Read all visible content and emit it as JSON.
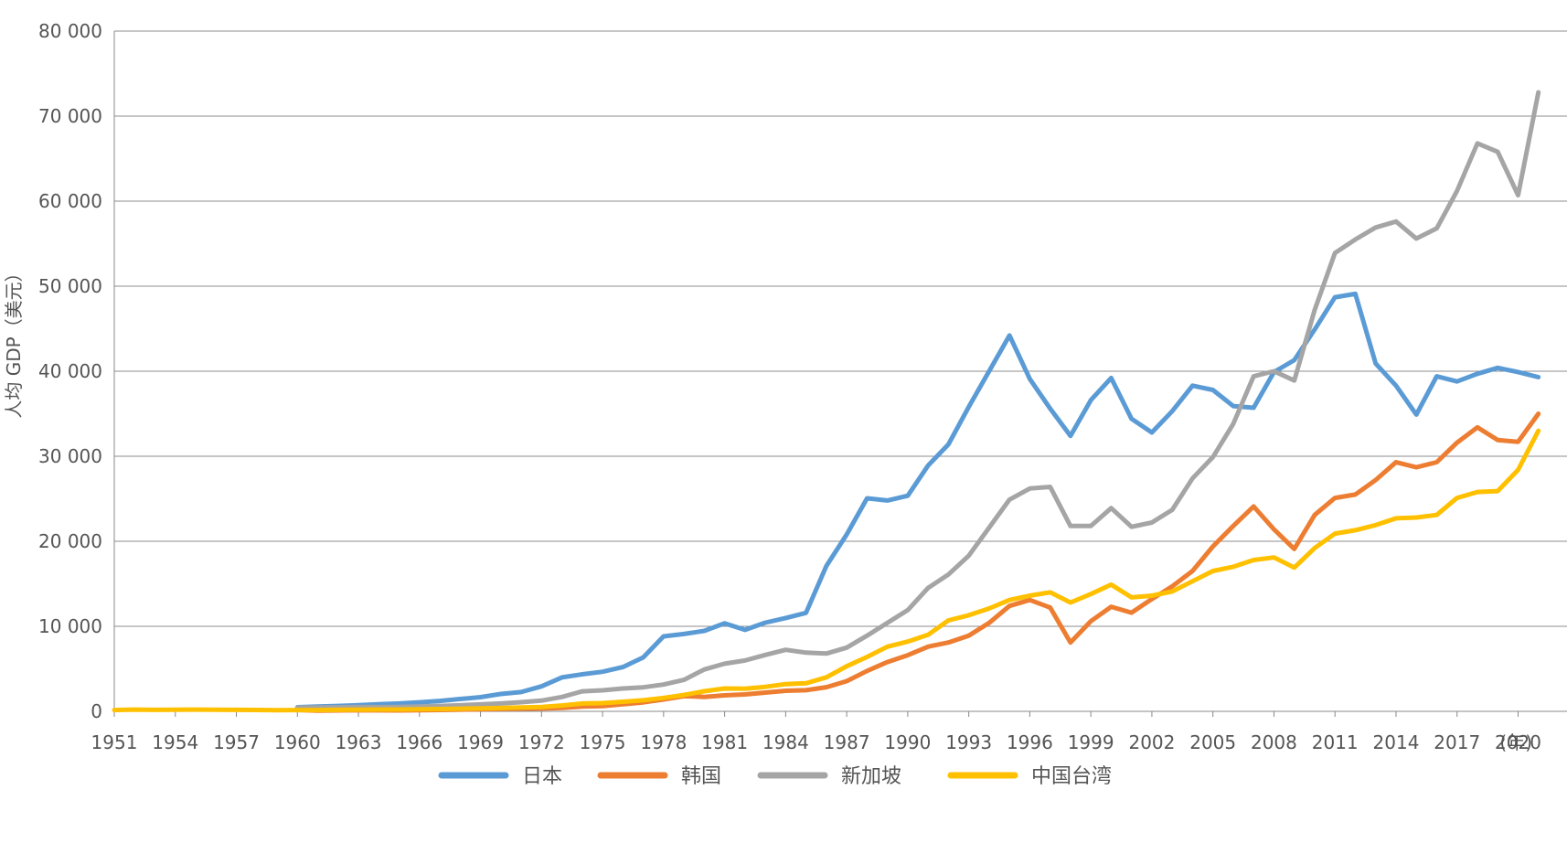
{
  "chart_data": {
    "type": "line",
    "title": "",
    "xlabel": "",
    "x_unit": "(年)",
    "ylabel": "人均 GDP（美元）",
    "ylim": [
      0,
      80000
    ],
    "yticks": [
      0,
      10000,
      20000,
      30000,
      40000,
      50000,
      60000,
      70000,
      80000
    ],
    "ytick_labels": [
      "0",
      "10 000",
      "20 000",
      "30 000",
      "40 000",
      "50 000",
      "60 000",
      "70 000",
      "80 000"
    ],
    "xlim": [
      1951,
      2022
    ],
    "xticks": [
      1951,
      1954,
      1957,
      1960,
      1963,
      1966,
      1969,
      1972,
      1975,
      1978,
      1981,
      1984,
      1987,
      1990,
      1993,
      1996,
      1999,
      2002,
      2005,
      2008,
      2011,
      2014,
      2017,
      2020
    ],
    "grid": true,
    "legend_position": "bottom",
    "series": [
      {
        "name": "日本",
        "color": "#5B9BD5",
        "points": [
          [
            1960,
            480
          ],
          [
            1961,
            560
          ],
          [
            1962,
            630
          ],
          [
            1963,
            720
          ],
          [
            1964,
            840
          ],
          [
            1965,
            920
          ],
          [
            1966,
            1060
          ],
          [
            1967,
            1230
          ],
          [
            1968,
            1450
          ],
          [
            1969,
            1670
          ],
          [
            1970,
            2040
          ],
          [
            1971,
            2270
          ],
          [
            1972,
            2940
          ],
          [
            1973,
            3990
          ],
          [
            1974,
            4350
          ],
          [
            1975,
            4660
          ],
          [
            1976,
            5200
          ],
          [
            1977,
            6340
          ],
          [
            1978,
            8820
          ],
          [
            1979,
            9100
          ],
          [
            1980,
            9460
          ],
          [
            1981,
            10360
          ],
          [
            1982,
            9580
          ],
          [
            1983,
            10430
          ],
          [
            1984,
            10980
          ],
          [
            1985,
            11580
          ],
          [
            1986,
            17100
          ],
          [
            1987,
            20800
          ],
          [
            1988,
            25050
          ],
          [
            1989,
            24800
          ],
          [
            1990,
            25350
          ],
          [
            1991,
            28900
          ],
          [
            1992,
            31400
          ],
          [
            1993,
            35800
          ],
          [
            1994,
            40000
          ],
          [
            1995,
            44200
          ],
          [
            1996,
            39100
          ],
          [
            1997,
            35600
          ],
          [
            1998,
            32400
          ],
          [
            1999,
            36600
          ],
          [
            2000,
            39200
          ],
          [
            2001,
            34400
          ],
          [
            2002,
            32800
          ],
          [
            2003,
            35300
          ],
          [
            2004,
            38300
          ],
          [
            2005,
            37800
          ],
          [
            2006,
            35900
          ],
          [
            2007,
            35700
          ],
          [
            2008,
            39900
          ],
          [
            2009,
            41300
          ],
          [
            2010,
            44900
          ],
          [
            2011,
            48700
          ],
          [
            2012,
            49100
          ],
          [
            2013,
            40900
          ],
          [
            2014,
            38300
          ],
          [
            2015,
            34900
          ],
          [
            2016,
            39400
          ],
          [
            2017,
            38800
          ],
          [
            2018,
            39700
          ],
          [
            2019,
            40400
          ],
          [
            2020,
            39900
          ],
          [
            2021,
            39300
          ]
        ]
      },
      {
        "name": "韩国",
        "color": "#ED7D31",
        "points": [
          [
            1960,
            160
          ],
          [
            1961,
            90
          ],
          [
            1962,
            110
          ],
          [
            1963,
            140
          ],
          [
            1964,
            120
          ],
          [
            1965,
            110
          ],
          [
            1966,
            130
          ],
          [
            1967,
            160
          ],
          [
            1968,
            200
          ],
          [
            1969,
            240
          ],
          [
            1970,
            280
          ],
          [
            1971,
            310
          ],
          [
            1972,
            330
          ],
          [
            1973,
            410
          ],
          [
            1974,
            560
          ],
          [
            1975,
            620
          ],
          [
            1976,
            830
          ],
          [
            1977,
            1050
          ],
          [
            1978,
            1400
          ],
          [
            1979,
            1780
          ],
          [
            1980,
            1700
          ],
          [
            1981,
            1880
          ],
          [
            1982,
            1990
          ],
          [
            1983,
            2200
          ],
          [
            1984,
            2420
          ],
          [
            1985,
            2480
          ],
          [
            1986,
            2840
          ],
          [
            1987,
            3550
          ],
          [
            1988,
            4750
          ],
          [
            1989,
            5800
          ],
          [
            1990,
            6600
          ],
          [
            1991,
            7600
          ],
          [
            1992,
            8100
          ],
          [
            1993,
            8900
          ],
          [
            1994,
            10400
          ],
          [
            1995,
            12400
          ],
          [
            1996,
            13100
          ],
          [
            1997,
            12200
          ],
          [
            1998,
            8100
          ],
          [
            1999,
            10600
          ],
          [
            2000,
            12300
          ],
          [
            2001,
            11600
          ],
          [
            2002,
            13200
          ],
          [
            2003,
            14700
          ],
          [
            2004,
            16500
          ],
          [
            2005,
            19400
          ],
          [
            2006,
            21800
          ],
          [
            2007,
            24100
          ],
          [
            2008,
            21400
          ],
          [
            2009,
            19100
          ],
          [
            2010,
            23100
          ],
          [
            2011,
            25100
          ],
          [
            2012,
            25500
          ],
          [
            2013,
            27200
          ],
          [
            2014,
            29300
          ],
          [
            2015,
            28700
          ],
          [
            2016,
            29300
          ],
          [
            2017,
            31600
          ],
          [
            2018,
            33400
          ],
          [
            2019,
            31900
          ],
          [
            2020,
            31700
          ],
          [
            2021,
            35000
          ]
        ]
      },
      {
        "name": "新加坡",
        "color": "#A5A5A5",
        "points": [
          [
            1960,
            430
          ],
          [
            1961,
            450
          ],
          [
            1962,
            470
          ],
          [
            1963,
            510
          ],
          [
            1964,
            490
          ],
          [
            1965,
            520
          ],
          [
            1966,
            570
          ],
          [
            1967,
            630
          ],
          [
            1968,
            710
          ],
          [
            1969,
            820
          ],
          [
            1970,
            930
          ],
          [
            1971,
            1070
          ],
          [
            1972,
            1260
          ],
          [
            1973,
            1690
          ],
          [
            1974,
            2350
          ],
          [
            1975,
            2470
          ],
          [
            1976,
            2690
          ],
          [
            1977,
            2830
          ],
          [
            1978,
            3150
          ],
          [
            1979,
            3700
          ],
          [
            1980,
            4930
          ],
          [
            1981,
            5600
          ],
          [
            1982,
            5980
          ],
          [
            1983,
            6630
          ],
          [
            1984,
            7240
          ],
          [
            1985,
            6900
          ],
          [
            1986,
            6800
          ],
          [
            1987,
            7500
          ],
          [
            1988,
            8900
          ],
          [
            1989,
            10400
          ],
          [
            1990,
            11900
          ],
          [
            1991,
            14500
          ],
          [
            1992,
            16100
          ],
          [
            1993,
            18300
          ],
          [
            1994,
            21600
          ],
          [
            1995,
            24900
          ],
          [
            1996,
            26200
          ],
          [
            1997,
            26400
          ],
          [
            1998,
            21800
          ],
          [
            1999,
            21800
          ],
          [
            2000,
            23900
          ],
          [
            2001,
            21700
          ],
          [
            2002,
            22200
          ],
          [
            2003,
            23700
          ],
          [
            2004,
            27400
          ],
          [
            2005,
            29900
          ],
          [
            2006,
            33800
          ],
          [
            2007,
            39400
          ],
          [
            2008,
            40000
          ],
          [
            2009,
            38900
          ],
          [
            2010,
            47200
          ],
          [
            2011,
            53900
          ],
          [
            2012,
            55500
          ],
          [
            2013,
            56900
          ],
          [
            2014,
            57600
          ],
          [
            2015,
            55600
          ],
          [
            2016,
            56800
          ],
          [
            2017,
            61200
          ],
          [
            2018,
            66800
          ],
          [
            2019,
            65800
          ],
          [
            2020,
            60700
          ],
          [
            2021,
            72800
          ]
        ]
      },
      {
        "name": "中国台湾",
        "color": "#FFC000",
        "points": [
          [
            1951,
            150
          ],
          [
            1952,
            200
          ],
          [
            1953,
            170
          ],
          [
            1954,
            180
          ],
          [
            1955,
            200
          ],
          [
            1956,
            180
          ],
          [
            1957,
            170
          ],
          [
            1958,
            160
          ],
          [
            1959,
            140
          ],
          [
            1960,
            150
          ],
          [
            1961,
            150
          ],
          [
            1962,
            170
          ],
          [
            1963,
            190
          ],
          [
            1964,
            210
          ],
          [
            1965,
            220
          ],
          [
            1966,
            240
          ],
          [
            1967,
            270
          ],
          [
            1968,
            310
          ],
          [
            1969,
            350
          ],
          [
            1970,
            390
          ],
          [
            1971,
            450
          ],
          [
            1972,
            520
          ],
          [
            1973,
            690
          ],
          [
            1974,
            920
          ],
          [
            1975,
            970
          ],
          [
            1976,
            1130
          ],
          [
            1977,
            1300
          ],
          [
            1978,
            1580
          ],
          [
            1979,
            1920
          ],
          [
            1980,
            2370
          ],
          [
            1981,
            2690
          ],
          [
            1982,
            2670
          ],
          [
            1983,
            2880
          ],
          [
            1984,
            3200
          ],
          [
            1985,
            3300
          ],
          [
            1986,
            4000
          ],
          [
            1987,
            5300
          ],
          [
            1988,
            6400
          ],
          [
            1989,
            7600
          ],
          [
            1990,
            8200
          ],
          [
            1991,
            9000
          ],
          [
            1992,
            10700
          ],
          [
            1993,
            11300
          ],
          [
            1994,
            12100
          ],
          [
            1995,
            13100
          ],
          [
            1996,
            13600
          ],
          [
            1997,
            14000
          ],
          [
            1998,
            12800
          ],
          [
            1999,
            13800
          ],
          [
            2000,
            14900
          ],
          [
            2001,
            13400
          ],
          [
            2002,
            13600
          ],
          [
            2003,
            14100
          ],
          [
            2004,
            15300
          ],
          [
            2005,
            16500
          ],
          [
            2006,
            17000
          ],
          [
            2007,
            17800
          ],
          [
            2008,
            18100
          ],
          [
            2009,
            16900
          ],
          [
            2010,
            19200
          ],
          [
            2011,
            20900
          ],
          [
            2012,
            21300
          ],
          [
            2013,
            21900
          ],
          [
            2014,
            22700
          ],
          [
            2015,
            22800
          ],
          [
            2016,
            23100
          ],
          [
            2017,
            25100
          ],
          [
            2018,
            25800
          ],
          [
            2019,
            25900
          ],
          [
            2020,
            28400
          ],
          [
            2021,
            33000
          ]
        ]
      }
    ]
  }
}
